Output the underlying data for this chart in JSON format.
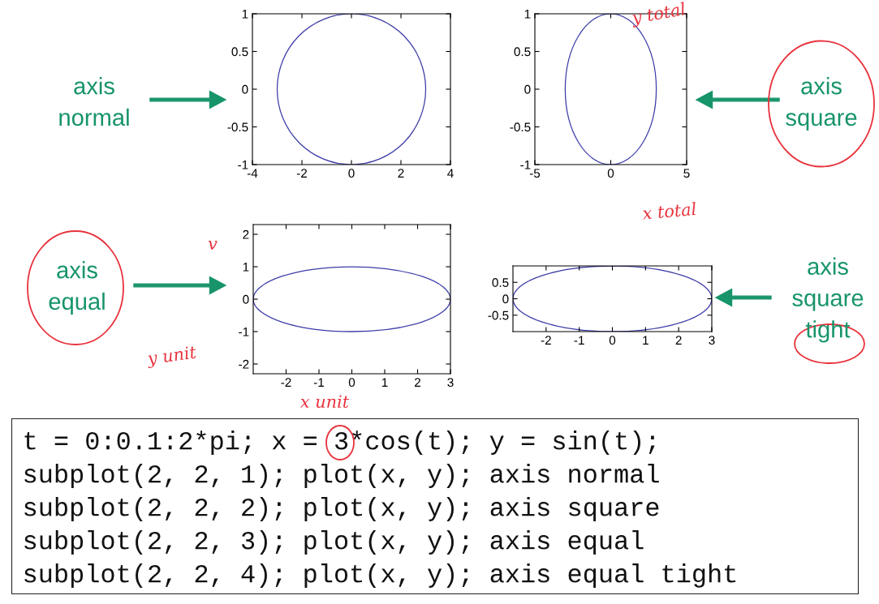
{
  "chart_data": [
    {
      "type": "line",
      "xlim": [
        -4,
        4
      ],
      "ylim": [
        -1,
        1
      ],
      "xticks": [
        -4,
        -2,
        0,
        2,
        4
      ],
      "yticks": [
        -1,
        -0.5,
        0,
        0.5,
        1
      ],
      "grid": false,
      "annotations": [
        "axis\nnormal"
      ]
    },
    {
      "type": "line",
      "xlim": [
        -5,
        5
      ],
      "ylim": [
        -1,
        1
      ],
      "xticks": [
        -5,
        0,
        5
      ],
      "yticks": [
        -1,
        -0.5,
        0,
        0.5,
        1
      ],
      "grid": false,
      "annotations": [
        "axis\nsquare",
        "y total",
        "x total"
      ]
    },
    {
      "type": "line",
      "xlim": [
        -3,
        3
      ],
      "ylim": [
        -2.3,
        2.3
      ],
      "xticks": [
        -2,
        -1,
        0,
        1,
        2,
        3
      ],
      "yticks": [
        -2,
        -1,
        0,
        1,
        2
      ],
      "grid": false,
      "annotations": [
        "axis\nequal",
        "y unit",
        "x unit",
        "v"
      ]
    },
    {
      "type": "line",
      "xlim": [
        -3,
        3
      ],
      "ylim": [
        -1,
        1
      ],
      "xticks": [
        -2,
        -1,
        0,
        1,
        2,
        3
      ],
      "yticks": [
        -0.5,
        0,
        0.5
      ],
      "grid": false,
      "annotations": [
        "axis\nsquare\ntight"
      ]
    },
    {
      "type": "other",
      "annotations": [
        "t = 0:0.1:2*pi; x = 3*cos(t); y = sin(t);",
        "subplot(2, 2, 1); plot(x, y); axis normal",
        "subplot(2, 2, 2); plot(x, y); axis square",
        "subplot(2, 2, 3); plot(x, y); axis equal",
        "subplot(2, 2, 4); plot(x, y); axis equal tight"
      ]
    }
  ]
}
